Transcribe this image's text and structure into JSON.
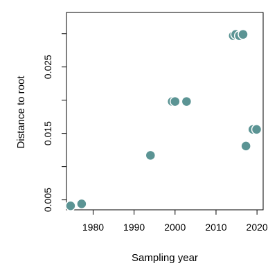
{
  "chart_data": {
    "type": "scatter",
    "title": "",
    "xlabel": "Sampling year",
    "ylabel": "Distance to root",
    "xlim": [
      1973.5,
      2021.5
    ],
    "ylim": [
      0.0035,
      0.0332
    ],
    "xticks": [
      1980,
      1990,
      2000,
      2010,
      2020
    ],
    "xtick_labels": [
      "1980",
      "1990",
      "2000",
      "2010",
      "2020"
    ],
    "yticks": [
      0.005,
      0.01,
      0.015,
      0.02,
      0.025,
      0.03
    ],
    "ytick_labels": [
      "0.005",
      "",
      "0.015",
      "",
      "0.025",
      ""
    ],
    "grid": false,
    "marker_color": "#5B9494",
    "marker_edge_color": "#ffffff",
    "points": [
      {
        "x": 1974.5,
        "y": 0.0041
      },
      {
        "x": 1977.2,
        "y": 0.0044
      },
      {
        "x": 1994.0,
        "y": 0.0117
      },
      {
        "x": 1999.3,
        "y": 0.0198
      },
      {
        "x": 2000.0,
        "y": 0.0198
      },
      {
        "x": 2002.8,
        "y": 0.0198
      },
      {
        "x": 2014.2,
        "y": 0.0297
      },
      {
        "x": 2014.8,
        "y": 0.0299
      },
      {
        "x": 2015.7,
        "y": 0.0297
      },
      {
        "x": 2016.6,
        "y": 0.0299
      },
      {
        "x": 2017.3,
        "y": 0.0131
      },
      {
        "x": 2019.0,
        "y": 0.0156
      },
      {
        "x": 2019.9,
        "y": 0.0156
      }
    ]
  }
}
